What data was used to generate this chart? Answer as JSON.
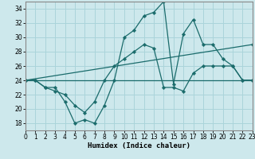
{
  "xlabel": "Humidex (Indice chaleur)",
  "bg_color": "#cde8ec",
  "grid_color": "#aad4da",
  "line_color": "#1a6b6b",
  "xlim": [
    0,
    23
  ],
  "ylim": [
    17,
    35
  ],
  "yticks": [
    18,
    20,
    22,
    24,
    26,
    28,
    30,
    32,
    34
  ],
  "xticks": [
    0,
    1,
    2,
    3,
    4,
    5,
    6,
    7,
    8,
    9,
    10,
    11,
    12,
    13,
    14,
    15,
    16,
    17,
    18,
    19,
    20,
    21,
    22,
    23
  ],
  "series": [
    {
      "x": [
        0,
        1,
        2,
        3,
        4,
        5,
        6,
        7,
        8,
        9,
        10,
        11,
        12,
        13,
        14,
        15,
        16,
        17,
        18,
        19,
        20,
        21,
        22,
        23
      ],
      "y": [
        24,
        24,
        23,
        23,
        21,
        18,
        18.5,
        18,
        20.5,
        24,
        30,
        31,
        33,
        33.5,
        35,
        23.5,
        30.5,
        32.5,
        29,
        29,
        27,
        26,
        24,
        24
      ]
    },
    {
      "x": [
        0,
        1,
        2,
        3,
        4,
        5,
        6,
        7,
        8,
        9,
        10,
        11,
        12,
        13,
        14,
        15,
        16,
        17,
        18,
        19,
        20,
        21,
        22,
        23
      ],
      "y": [
        24,
        24,
        23,
        22.5,
        22,
        20.5,
        19.5,
        21,
        24,
        26,
        27,
        28,
        29,
        28.5,
        23,
        23,
        22.5,
        25,
        26,
        26,
        26,
        26,
        24,
        24
      ]
    },
    {
      "x": [
        0,
        23
      ],
      "y": [
        24,
        24
      ]
    },
    {
      "x": [
        0,
        23
      ],
      "y": [
        24,
        29
      ]
    }
  ]
}
